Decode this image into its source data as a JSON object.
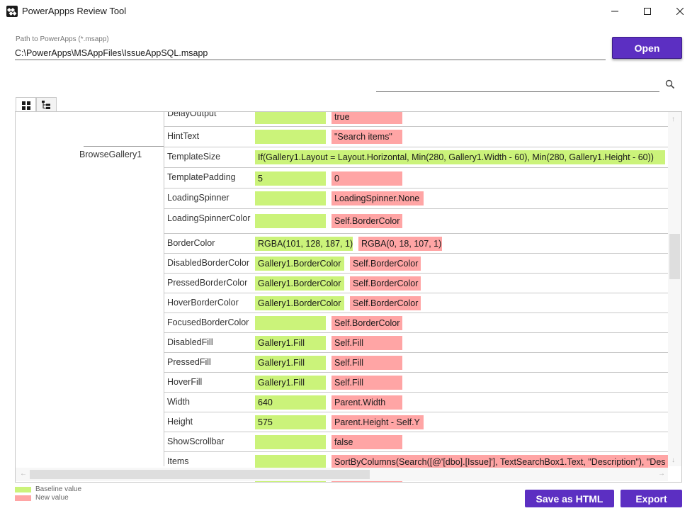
{
  "window": {
    "title": "PowerAppps Review Tool",
    "minimize_glyph": "minimize-icon",
    "maximize_glyph": "maximize-icon",
    "close_glyph": "close-icon"
  },
  "path": {
    "label": "Path to PowerApps (*.msapp)",
    "value": "C:\\PowerApps\\MSAppFiles\\IssueAppSQL.msapp"
  },
  "open_button": "Open",
  "search": {
    "value": "",
    "icon": "search-icon"
  },
  "tabs": [
    {
      "name": "grid-view",
      "icon": "grid-icon"
    },
    {
      "name": "tree-view",
      "icon": "tree-icon"
    }
  ],
  "control_name": "BrowseGallery1",
  "rows": [
    {
      "prop": "DelayOutput",
      "base": "",
      "new": "true"
    },
    {
      "prop": "HintText",
      "base": "",
      "new": "\"Search items\""
    },
    {
      "prop": "TemplateSize",
      "base": "If(Gallery1.Layout = Layout.Horizontal, Min(280, Gallery1.Width - 60), Min(280, Gallery1.Height - 60))",
      "new": null
    },
    {
      "prop": "TemplatePadding",
      "base": "5",
      "new": "0"
    },
    {
      "prop": "LoadingSpinner",
      "base": "",
      "new": "LoadingSpinner.None"
    },
    {
      "prop": "LoadingSpinnerColor",
      "base": "",
      "new": "Self.BorderColor"
    },
    {
      "prop": "BorderColor",
      "base": "RGBA(101, 128, 187, 1)",
      "new": "RGBA(0, 18, 107, 1)"
    },
    {
      "prop": "DisabledBorderColor",
      "base": "Gallery1.BorderColor",
      "new": "Self.BorderColor"
    },
    {
      "prop": "PressedBorderColor",
      "base": "Gallery1.BorderColor",
      "new": "Self.BorderColor"
    },
    {
      "prop": "HoverBorderColor",
      "base": "Gallery1.BorderColor",
      "new": "Self.BorderColor"
    },
    {
      "prop": "FocusedBorderColor",
      "base": "",
      "new": "Self.BorderColor"
    },
    {
      "prop": "DisabledFill",
      "base": "Gallery1.Fill",
      "new": "Self.Fill"
    },
    {
      "prop": "PressedFill",
      "base": "Gallery1.Fill",
      "new": "Self.Fill"
    },
    {
      "prop": "HoverFill",
      "base": "Gallery1.Fill",
      "new": "Self.Fill"
    },
    {
      "prop": "Width",
      "base": "640",
      "new": "Parent.Width"
    },
    {
      "prop": "Height",
      "base": "575",
      "new": "Parent.Height - Self.Y"
    },
    {
      "prop": "ShowScrollbar",
      "base": "",
      "new": "false"
    },
    {
      "prop": "Items",
      "base": "",
      "new": "SortByColumns(Search([@'[dbo].[Issue]'], TextSearchBox1.Text, \"Description\"), \"Des"
    },
    {
      "prop": "",
      "base": "",
      "new": ""
    }
  ],
  "legend": {
    "baseline": "Baseline value",
    "new": "New value"
  },
  "colors": {
    "baseline": "#cbf37a",
    "new": "#ffa5a5",
    "accent": "#5c2fc2"
  },
  "buttons": {
    "save_html": "Save as HTML",
    "export": "Export"
  }
}
